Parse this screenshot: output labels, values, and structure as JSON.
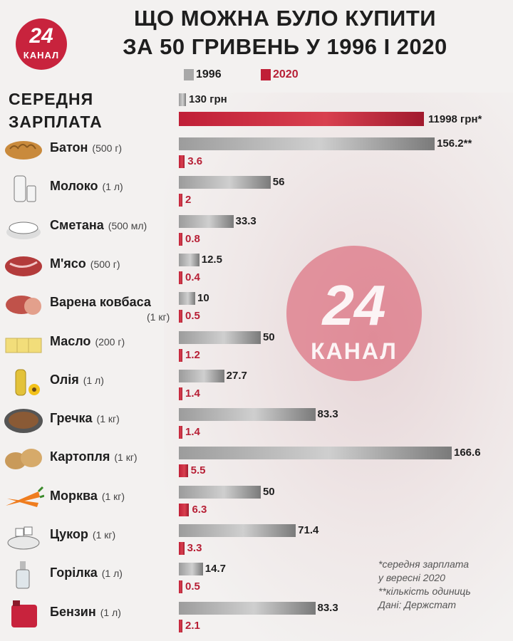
{
  "title_line1": "ЩО МОЖНА БУЛО КУПИТИ",
  "title_line2": "ЗА 50 ГРИВЕНЬ У 1996 І 2020",
  "logo": {
    "number": "24",
    "brand": "КАНАЛ"
  },
  "watermark": {
    "number": "24",
    "brand": "КАНАЛ"
  },
  "colors": {
    "c1996": "#a8a8a8",
    "c2020": "#c01f37",
    "brand": "#c8233d"
  },
  "chart_data": {
    "type": "bar",
    "orientation": "horizontal",
    "legend": [
      "1996",
      "2020"
    ],
    "salary": {
      "label_line1": "СЕРЕДНЯ",
      "label_line2": "ЗАРПЛАТА",
      "v1996": 130,
      "v2020": 11998,
      "label_1996": "130 грн",
      "label_2020": "11998 грн*"
    },
    "products": [
      {
        "name": "Батон",
        "unit": "(500 г)",
        "icon": "bread-icon",
        "v1996": 156.2,
        "v2020": 3.6,
        "label_1996": "156.2**",
        "label_2020": "3.6"
      },
      {
        "name": "Молоко",
        "unit": "(1 л)",
        "icon": "milk-icon",
        "v1996": 56,
        "v2020": 2,
        "label_1996": "56",
        "label_2020": "2"
      },
      {
        "name": "Сметана",
        "unit": "(500 мл)",
        "icon": "sour-cream-icon",
        "v1996": 33.3,
        "v2020": 0.8,
        "label_1996": "33.3",
        "label_2020": "0.8"
      },
      {
        "name": "М'ясо",
        "unit": "(500 г)",
        "icon": "meat-icon",
        "v1996": 12.5,
        "v2020": 0.4,
        "label_1996": "12.5",
        "label_2020": "0.4"
      },
      {
        "name": "Варена ковбаса",
        "unit": "(1 кг)",
        "icon": "sausage-icon",
        "v1996": 10,
        "v2020": 0.5,
        "label_1996": "10",
        "label_2020": "0.5"
      },
      {
        "name": "Масло",
        "unit": "(200 г)",
        "icon": "butter-icon",
        "v1996": 50,
        "v2020": 1.2,
        "label_1996": "50",
        "label_2020": "1.2"
      },
      {
        "name": "Олія",
        "unit": "(1 л)",
        "icon": "oil-icon",
        "v1996": 27.7,
        "v2020": 1.4,
        "label_1996": "27.7",
        "label_2020": "1.4"
      },
      {
        "name": "Гречка",
        "unit": "(1 кг)",
        "icon": "buckwheat-icon",
        "v1996": 83.3,
        "v2020": 1.4,
        "label_1996": "83.3",
        "label_2020": "1.4"
      },
      {
        "name": "Картопля",
        "unit": "(1 кг)",
        "icon": "potato-icon",
        "v1996": 166.6,
        "v2020": 5.5,
        "label_1996": "166.6",
        "label_2020": "5.5"
      },
      {
        "name": "Морква",
        "unit": "(1 кг)",
        "icon": "carrot-icon",
        "v1996": 50,
        "v2020": 6.3,
        "label_1996": "50",
        "label_2020": "6.3"
      },
      {
        "name": "Цукор",
        "unit": "(1 кг)",
        "icon": "sugar-icon",
        "v1996": 71.4,
        "v2020": 3.3,
        "label_1996": "71.4",
        "label_2020": "3.3"
      },
      {
        "name": "Горілка",
        "unit": "(1 л)",
        "icon": "vodka-icon",
        "v1996": 14.7,
        "v2020": 0.5,
        "label_1996": "14.7",
        "label_2020": "0.5"
      },
      {
        "name": "Бензин",
        "unit": "(1 л)",
        "icon": "fuel-can-icon",
        "v1996": 83.3,
        "v2020": 2.1,
        "label_1996": "83.3",
        "label_2020": "2.1"
      }
    ]
  },
  "notes": [
    "*середня зарплата",
    "у вересні 2020",
    "**кількість одиниць",
    "Дані: Держстат"
  ]
}
